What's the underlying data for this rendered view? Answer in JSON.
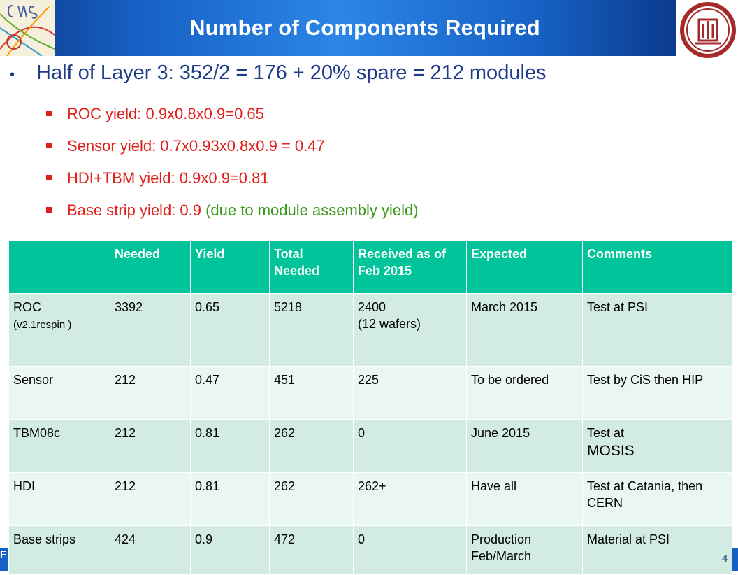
{
  "header": {
    "title": "Number of Components Required",
    "left_logo": "cms-logo",
    "right_logo": "university-seal-logo"
  },
  "main_bullet": "Half of Layer 3: 352/2 = 176 + 20% spare = 212 modules",
  "sub_bullets": [
    {
      "text": "ROC yield: 0.9x0.8x0.9=0.65"
    },
    {
      "text": "Sensor yield: 0.7x0.93x0.8x0.9 = 0.47"
    },
    {
      "text": "HDI+TBM yield: 0.9x0.9=0.81"
    },
    {
      "text": "Base strip yield: 0.9",
      "note": "(due to module assembly yield)"
    }
  ],
  "table": {
    "headers": [
      "",
      "Needed",
      "Yield",
      "Total Needed",
      "Received as of Feb 2015",
      "Expected",
      "Comments"
    ],
    "rows": [
      {
        "component": "ROC",
        "component_sub": "(v2.1respin )",
        "needed": "3392",
        "yield": "0.65",
        "total": "5218",
        "received": "2400",
        "received_sub": "(12 wafers)",
        "expected": "March 2015",
        "comments": "Test at PSI"
      },
      {
        "component": "Sensor",
        "needed": "212",
        "yield": "0.47",
        "total": "451",
        "received": "225",
        "expected": "To be ordered",
        "comments": "Test by CiS then HIP"
      },
      {
        "component": "TBM08c",
        "needed": "212",
        "yield": "0.81",
        "total": "262",
        "received": "0",
        "expected": "June 2015",
        "comments": "Test at",
        "comments_big": "MOSIS"
      },
      {
        "component": "HDI",
        "needed": "212",
        "yield": "0.81",
        "total": "262",
        "received": "262+",
        "expected": "Have all",
        "comments": "Test at Catania, then CERN"
      },
      {
        "component": "Base strips",
        "needed": "424",
        "yield": "0.9",
        "total": "472",
        "received": "0",
        "expected": "Production Feb/March",
        "comments": "Material at PSI"
      }
    ]
  },
  "footer": {
    "left_text": "F",
    "page_number": "4"
  },
  "colors": {
    "header_blue": "#1760c4",
    "bullet_blue": "#1f3c8a",
    "red": "#e0201b",
    "green": "#3a9a1b",
    "table_header": "#02c49a",
    "row_dark": "#d2ece3",
    "row_light": "#e9f6f1"
  }
}
